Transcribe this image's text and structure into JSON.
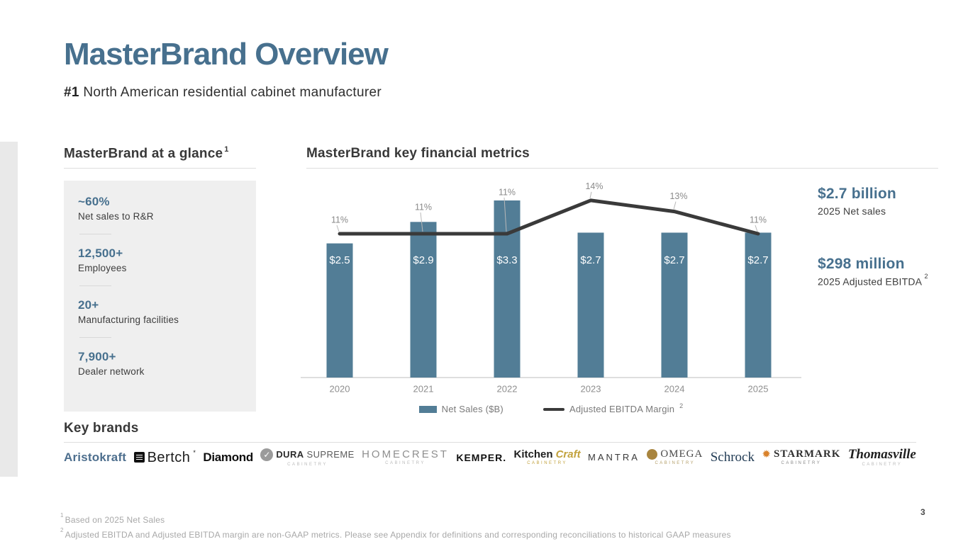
{
  "slide": {
    "title": "MasterBrand Overview",
    "subtitle_prefix": "#1",
    "subtitle_rest": " North American residential cabinet manufacturer",
    "page_number": "3"
  },
  "glance": {
    "heading": "MasterBrand at a glance",
    "heading_superscript": "1",
    "stats": [
      {
        "value": "~60%",
        "label": "Net sales to R&R"
      },
      {
        "value": "12,500+",
        "label": "Employees"
      },
      {
        "value": "20+",
        "label": "Manufacturing facilities"
      },
      {
        "value": "7,900+",
        "label": "Dealer network"
      }
    ]
  },
  "financials": {
    "heading": "MasterBrand key financial metrics",
    "highlights": [
      {
        "value": "$2.7 billion",
        "label": "2025 Net sales",
        "superscript": ""
      },
      {
        "value": "$298 million",
        "label": "2025 Adjusted EBITDA",
        "superscript": "2"
      }
    ]
  },
  "chart_data": {
    "type": "bar",
    "categories": [
      "2020",
      "2021",
      "2022",
      "2023",
      "2024",
      "2025"
    ],
    "series": [
      {
        "name": "Net Sales ($B)",
        "type": "bar",
        "values": [
          2.5,
          2.9,
          3.3,
          2.7,
          2.7,
          2.7
        ],
        "labels": [
          "$2.5",
          "$2.9",
          "$3.3",
          "$2.7",
          "$2.7",
          "$2.7"
        ],
        "color": "#527d96"
      },
      {
        "name": "Adjusted EBITDA Margin",
        "name_superscript": "2",
        "type": "line",
        "values": [
          11,
          11,
          11,
          14,
          13,
          11
        ],
        "labels": [
          "11%",
          "11%",
          "11%",
          "14%",
          "13%",
          "11%"
        ],
        "color": "#3a3a3a"
      }
    ],
    "title": "MasterBrand key financial metrics",
    "xlabel": "",
    "ylabel": "",
    "bar_axis_max": 3.3,
    "grid": false,
    "legend_position": "bottom"
  },
  "brands": {
    "heading": "Key brands",
    "items": [
      {
        "id": "aristokraft",
        "parts": [
          {
            "t": "Aristokraft",
            "c": "p1"
          }
        ]
      },
      {
        "id": "bertch",
        "icon": "bertch-square-icon",
        "parts": [
          {
            "t": "Bertch",
            "c": "p1"
          },
          {
            "t": "*",
            "c": "sup"
          }
        ]
      },
      {
        "id": "diamond",
        "parts": [
          {
            "t": "Diamond",
            "c": "p1"
          }
        ]
      },
      {
        "id": "durasupreme",
        "icon": "dura-circle-check-icon",
        "parts": [
          {
            "t": "DURA",
            "c": "p1"
          },
          {
            "t": "SUPREME",
            "c": "p2"
          }
        ],
        "sub": "CABINETRY"
      },
      {
        "id": "homecrest",
        "parts": [
          {
            "t": "HOMECREST",
            "c": "p1"
          }
        ],
        "sub": "CABINETRY"
      },
      {
        "id": "kemper",
        "parts": [
          {
            "t": "KEMPER.",
            "c": "p1"
          }
        ]
      },
      {
        "id": "kitchencraft",
        "parts": [
          {
            "t": "Kitchen",
            "c": "p1"
          },
          {
            "t": "Craft",
            "c": "p2"
          }
        ],
        "sub": "CABINETRY"
      },
      {
        "id": "mantra",
        "parts": [
          {
            "t": "MANTRA",
            "c": "p1"
          }
        ]
      },
      {
        "id": "omega",
        "icon": "omega-circle-icon",
        "parts": [
          {
            "t": "OMEGA",
            "c": "p1"
          }
        ],
        "sub": "CABINETRY"
      },
      {
        "id": "schrock",
        "parts": [
          {
            "t": "Schrock",
            "c": "p1"
          }
        ]
      },
      {
        "id": "starmark",
        "icon": "starmark-burst-icon",
        "parts": [
          {
            "t": "STARMARK",
            "c": "p1"
          }
        ],
        "sub": "CABINETRY"
      },
      {
        "id": "thomasville",
        "parts": [
          {
            "t": "Thomasville",
            "c": "p1"
          }
        ],
        "sub": "CABINETRY"
      }
    ]
  },
  "footnotes": [
    {
      "superscript": "1",
      "text": "Based on 2025 Net Sales"
    },
    {
      "superscript": "2",
      "text": "Adjusted EBITDA and Adjusted EBITDA margin are non-GAAP metrics. Please see Appendix for definitions and corresponding reconciliations to historical GAAP measures"
    }
  ],
  "colors": {
    "accent_blue": "#47708e",
    "bar_blue": "#527d96",
    "line_dark": "#3a3a3a",
    "label_gray": "#8a8a8a",
    "panel_gray": "#efefef"
  }
}
